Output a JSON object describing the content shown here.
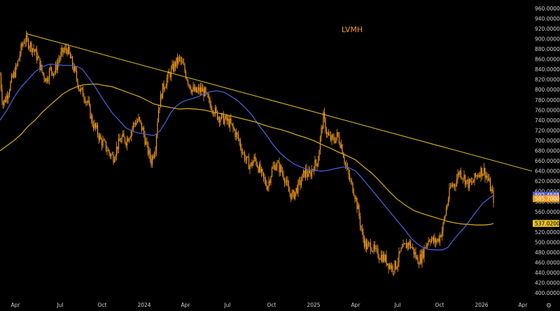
{
  "chart_data": {
    "type": "candlestick",
    "title": "LVMH",
    "y_ticks": [
      960,
      940,
      920,
      900,
      880,
      860,
      840,
      820,
      800,
      780,
      760,
      740,
      720,
      700,
      680,
      660,
      640,
      620,
      600,
      580,
      560,
      540,
      520,
      500,
      480,
      460,
      440,
      420,
      400
    ],
    "y_tick_labels": [
      "960.0000",
      "940.0000",
      "920.0000",
      "900.0000",
      "880.0000",
      "860.0000",
      "840.0000",
      "820.0000",
      "800.0000",
      "780.0000",
      "760.0000",
      "740.0000",
      "720.0000",
      "700.0000",
      "680.0000",
      "660.0000",
      "640.0000",
      "620.0000",
      "600.0000",
      "580.0000",
      "560.0000",
      "540.0000",
      "520.0000",
      "500.0000",
      "480.0000",
      "460.0000",
      "440.0000",
      "420.0000",
      "400.0000"
    ],
    "x_tick_labels": [
      "Apr",
      "Jul",
      "Oct",
      "2024",
      "Apr",
      "Jul",
      "Oct",
      "2025",
      "Apr",
      "Jul",
      "Oct",
      "2026",
      "Apr"
    ],
    "ylim": [
      395,
      965
    ],
    "grid": false,
    "price_path": [
      [
        0,
        830
      ],
      [
        4,
        770
      ],
      [
        10,
        790
      ],
      [
        17,
        820
      ],
      [
        24,
        845
      ],
      [
        30,
        880
      ],
      [
        35,
        900
      ],
      [
        42,
        890
      ],
      [
        48,
        880
      ],
      [
        54,
        862
      ],
      [
        60,
        835
      ],
      [
        66,
        820
      ],
      [
        72,
        840
      ],
      [
        78,
        835
      ],
      [
        84,
        860
      ],
      [
        90,
        875
      ],
      [
        96,
        880
      ],
      [
        102,
        855
      ],
      [
        108,
        830
      ],
      [
        114,
        800
      ],
      [
        120,
        790
      ],
      [
        126,
        770
      ],
      [
        132,
        735
      ],
      [
        138,
        720
      ],
      [
        144,
        700
      ],
      [
        150,
        690
      ],
      [
        156,
        675
      ],
      [
        162,
        668
      ],
      [
        168,
        690
      ],
      [
        174,
        705
      ],
      [
        180,
        700
      ],
      [
        186,
        715
      ],
      [
        192,
        735
      ],
      [
        198,
        740
      ],
      [
        204,
        720
      ],
      [
        210,
        685
      ],
      [
        216,
        660
      ],
      [
        222,
        690
      ],
      [
        226,
        760
      ],
      [
        232,
        800
      ],
      [
        238,
        820
      ],
      [
        244,
        835
      ],
      [
        250,
        850
      ],
      [
        256,
        860
      ],
      [
        262,
        845
      ],
      [
        268,
        820
      ],
      [
        274,
        800
      ],
      [
        280,
        795
      ],
      [
        286,
        800
      ],
      [
        292,
        795
      ],
      [
        298,
        775
      ],
      [
        304,
        765
      ],
      [
        310,
        750
      ],
      [
        316,
        745
      ],
      [
        322,
        740
      ],
      [
        328,
        735
      ],
      [
        334,
        720
      ],
      [
        340,
        705
      ],
      [
        346,
        680
      ],
      [
        352,
        660
      ],
      [
        358,
        650
      ],
      [
        364,
        665
      ],
      [
        370,
        645
      ],
      [
        376,
        625
      ],
      [
        382,
        610
      ],
      [
        388,
        640
      ],
      [
        394,
        655
      ],
      [
        400,
        645
      ],
      [
        406,
        630
      ],
      [
        412,
        600
      ],
      [
        418,
        590
      ],
      [
        424,
        605
      ],
      [
        430,
        620
      ],
      [
        436,
        640
      ],
      [
        442,
        630
      ],
      [
        448,
        650
      ],
      [
        454,
        660
      ],
      [
        458,
        710
      ],
      [
        462,
        745
      ],
      [
        466,
        720
      ],
      [
        470,
        705
      ],
      [
        476,
        700
      ],
      [
        482,
        710
      ],
      [
        488,
        690
      ],
      [
        494,
        650
      ],
      [
        500,
        620
      ],
      [
        506,
        600
      ],
      [
        512,
        560
      ],
      [
        518,
        510
      ],
      [
        524,
        490
      ],
      [
        530,
        495
      ],
      [
        536,
        480
      ],
      [
        542,
        475
      ],
      [
        548,
        470
      ],
      [
        554,
        460
      ],
      [
        560,
        450
      ],
      [
        566,
        455
      ],
      [
        572,
        480
      ],
      [
        578,
        490
      ],
      [
        584,
        500
      ],
      [
        590,
        485
      ],
      [
        596,
        465
      ],
      [
        602,
        470
      ],
      [
        608,
        495
      ],
      [
        614,
        510
      ],
      [
        620,
        500
      ],
      [
        626,
        505
      ],
      [
        632,
        525
      ],
      [
        638,
        570
      ],
      [
        644,
        610
      ],
      [
        650,
        615
      ],
      [
        656,
        640
      ],
      [
        662,
        630
      ],
      [
        668,
        615
      ],
      [
        674,
        615
      ],
      [
        680,
        630
      ],
      [
        686,
        640
      ],
      [
        692,
        640
      ],
      [
        698,
        620
      ],
      [
        702,
        600
      ],
      [
        705,
        585.7
      ]
    ],
    "series": [
      {
        "name": "",
        "color": "#f29b1d",
        "kind": "candles"
      },
      {
        "name": "",
        "color": "#4a5bd4",
        "kind": "line",
        "points": [
          [
            0,
            740
          ],
          [
            10,
            760
          ],
          [
            20,
            785
          ],
          [
            30,
            805
          ],
          [
            40,
            820
          ],
          [
            50,
            835
          ],
          [
            60,
            845
          ],
          [
            70,
            850
          ],
          [
            80,
            850
          ],
          [
            90,
            848
          ],
          [
            100,
            848
          ],
          [
            110,
            846
          ],
          [
            118,
            840
          ],
          [
            126,
            825
          ],
          [
            134,
            810
          ],
          [
            142,
            792
          ],
          [
            150,
            775
          ],
          [
            160,
            755
          ],
          [
            170,
            740
          ],
          [
            180,
            725
          ],
          [
            190,
            718
          ],
          [
            198,
            715
          ],
          [
            206,
            713
          ],
          [
            214,
            711
          ],
          [
            220,
            710
          ],
          [
            228,
            718
          ],
          [
            236,
            735
          ],
          [
            244,
            755
          ],
          [
            252,
            768
          ],
          [
            260,
            776
          ],
          [
            268,
            780
          ],
          [
            276,
            783
          ],
          [
            284,
            787
          ],
          [
            292,
            792
          ],
          [
            300,
            796
          ],
          [
            310,
            798
          ],
          [
            320,
            795
          ],
          [
            330,
            787
          ],
          [
            340,
            778
          ],
          [
            350,
            765
          ],
          [
            360,
            750
          ],
          [
            370,
            730
          ],
          [
            380,
            712
          ],
          [
            390,
            692
          ],
          [
            400,
            676
          ],
          [
            410,
            664
          ],
          [
            420,
            654
          ],
          [
            430,
            648
          ],
          [
            440,
            643
          ],
          [
            450,
            641
          ],
          [
            460,
            640
          ],
          [
            470,
            642
          ],
          [
            480,
            645
          ],
          [
            490,
            648
          ],
          [
            498,
            647
          ],
          [
            508,
            640
          ],
          [
            518,
            625
          ],
          [
            530,
            605
          ],
          [
            542,
            585
          ],
          [
            554,
            565
          ],
          [
            566,
            545
          ],
          [
            578,
            525
          ],
          [
            588,
            507
          ],
          [
            596,
            497
          ],
          [
            604,
            490
          ],
          [
            612,
            486
          ],
          [
            622,
            485
          ],
          [
            632,
            485
          ],
          [
            640,
            490
          ],
          [
            648,
            505
          ],
          [
            656,
            518
          ],
          [
            664,
            530
          ],
          [
            672,
            545
          ],
          [
            680,
            560
          ],
          [
            690,
            577
          ],
          [
            700,
            588
          ],
          [
            705,
            592.45
          ]
        ]
      },
      {
        "name": "",
        "color": "#c9a21f",
        "kind": "line",
        "points": [
          [
            0,
            680
          ],
          [
            10,
            690
          ],
          [
            20,
            700
          ],
          [
            30,
            712
          ],
          [
            40,
            728
          ],
          [
            50,
            740
          ],
          [
            60,
            755
          ],
          [
            70,
            768
          ],
          [
            80,
            780
          ],
          [
            90,
            792
          ],
          [
            100,
            800
          ],
          [
            110,
            806
          ],
          [
            120,
            810
          ],
          [
            130,
            811
          ],
          [
            140,
            811
          ],
          [
            150,
            808
          ],
          [
            160,
            806
          ],
          [
            170,
            801
          ],
          [
            180,
            796
          ],
          [
            190,
            791
          ],
          [
            200,
            786
          ],
          [
            210,
            779
          ],
          [
            220,
            772
          ],
          [
            232,
            768
          ],
          [
            244,
            765
          ],
          [
            256,
            762
          ],
          [
            268,
            763
          ],
          [
            280,
            762
          ],
          [
            292,
            760
          ],
          [
            304,
            756
          ],
          [
            316,
            753
          ],
          [
            328,
            749
          ],
          [
            340,
            745
          ],
          [
            352,
            741
          ],
          [
            364,
            737
          ],
          [
            376,
            731
          ],
          [
            388,
            726
          ],
          [
            400,
            722
          ],
          [
            412,
            717
          ],
          [
            424,
            711
          ],
          [
            436,
            706
          ],
          [
            448,
            700
          ],
          [
            460,
            692
          ],
          [
            472,
            685
          ],
          [
            484,
            677
          ],
          [
            496,
            670
          ],
          [
            508,
            662
          ],
          [
            520,
            648
          ],
          [
            532,
            635
          ],
          [
            544,
            618
          ],
          [
            556,
            600
          ],
          [
            568,
            584
          ],
          [
            580,
            572
          ],
          [
            592,
            562
          ],
          [
            604,
            556
          ],
          [
            616,
            551
          ],
          [
            628,
            546
          ],
          [
            640,
            541
          ],
          [
            650,
            538
          ],
          [
            660,
            536
          ],
          [
            670,
            535
          ],
          [
            680,
            534
          ],
          [
            690,
            534
          ],
          [
            700,
            535
          ],
          [
            705,
            537.02
          ]
        ]
      }
    ],
    "trendline": {
      "color": "#e6c229",
      "from": [
        38,
        910
      ],
      "to": [
        760,
        640
      ]
    },
    "last_value_labels": [
      {
        "value": "592.4505",
        "color": "#4a5bd4"
      },
      {
        "value": "585.7000",
        "color": "#f29b1d"
      },
      {
        "value": "537.0200",
        "color": "#e6c229"
      }
    ]
  }
}
